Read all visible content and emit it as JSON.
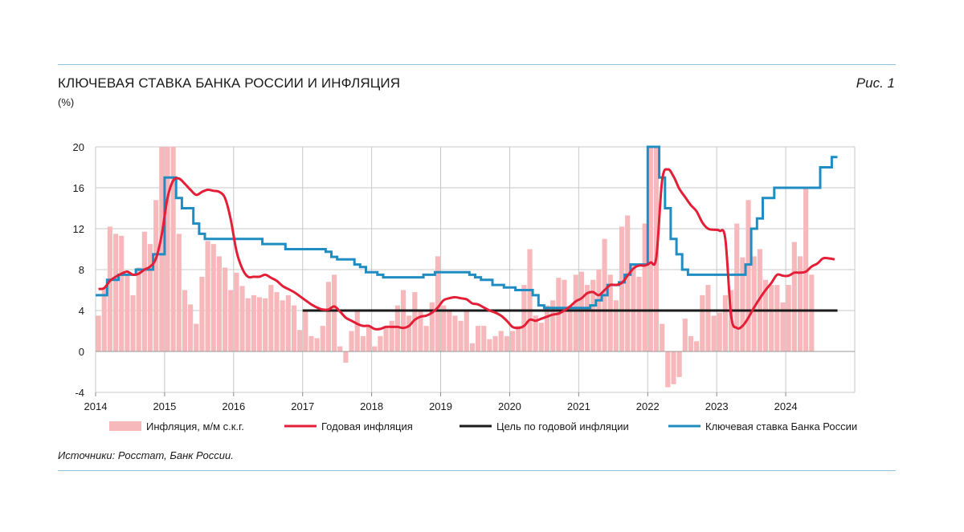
{
  "header": {
    "title": "КЛЮЧЕВАЯ СТАВКА БАНКА РОССИИ И ИНФЛЯЦИЯ",
    "unit": "(%)",
    "figure_label": "Рис. 1"
  },
  "footer": {
    "source": "Источники: Росстат, Банк России."
  },
  "colors": {
    "monthly_bars": "#f7b8bb",
    "annual_line": "#e31e36",
    "target_line": "#1a1a1a",
    "key_rate_line": "#1f8dc1",
    "grid": "#c8c8c8",
    "rule": "#8fc3dd"
  },
  "chart_data": {
    "type": "bar+line",
    "x_ticks": [
      "2014",
      "2015",
      "2016",
      "2017",
      "2018",
      "2019",
      "2020",
      "2021",
      "2022",
      "2023",
      "2024"
    ],
    "ylim": [
      -4,
      20
    ],
    "y_ticks": [
      "20",
      "16",
      "12",
      "8",
      "4",
      "0",
      "-4"
    ],
    "grid": true,
    "legend_position": "bottom",
    "legend": [
      {
        "label": "Инфляция, м/м с.к.г.",
        "kind": "bar"
      },
      {
        "label": "Годовая инфляция",
        "kind": "line",
        "color_key": "annual_line"
      },
      {
        "label": "Цель по годовой инфляции",
        "kind": "line",
        "color_key": "target_line"
      },
      {
        "label": "Ключевая ставка Банка России",
        "kind": "line",
        "color_key": "key_rate_line"
      }
    ],
    "monthly_inflation_saar": [
      3.5,
      6.2,
      12.2,
      11.5,
      11.3,
      7.5,
      5.5,
      8.2,
      11.7,
      10.5,
      14.8,
      20.0,
      20.0,
      20.0,
      11.5,
      6.0,
      4.6,
      2.7,
      7.3,
      10.8,
      10.5,
      9.3,
      8.2,
      6.0,
      7.7,
      6.4,
      5.2,
      5.5,
      5.3,
      5.2,
      6.5,
      5.8,
      5.0,
      5.5,
      4.5,
      2.1,
      4.0,
      1.5,
      1.3,
      2.5,
      6.8,
      7.5,
      0.5,
      -1.1,
      2.0,
      4.0,
      1.5,
      2.5,
      0.5,
      1.5,
      2.5,
      3.0,
      4.5,
      6.0,
      3.5,
      5.8,
      4.0,
      2.5,
      4.8,
      9.3,
      4.5,
      4.0,
      3.5,
      3.0,
      4.0,
      0.8,
      2.5,
      2.5,
      1.2,
      1.5,
      2.0,
      1.5,
      2.0,
      2.5,
      6.5,
      10.0,
      3.5,
      2.8,
      4.5,
      5.0,
      7.2,
      7.0,
      4.5,
      7.5,
      7.8,
      6.5,
      7.0,
      8.0,
      11.0,
      7.5,
      5.0,
      12.2,
      13.3,
      8.5,
      7.3,
      12.5,
      20.0,
      20.0,
      2.7,
      -3.5,
      -3.2,
      -2.5,
      3.2,
      1.5,
      1.0,
      5.5,
      6.5,
      3.5,
      3.8,
      5.5,
      6.0,
      12.5,
      9.2,
      14.8,
      9.3,
      10.0,
      7.0,
      6.5,
      6.5,
      4.8,
      6.5,
      10.7,
      9.3,
      16.0,
      7.5
    ],
    "annual_inflation": [
      6.1,
      6.2,
      6.9,
      7.3,
      7.6,
      7.8,
      7.5,
      7.6,
      8.0,
      8.3,
      9.1,
      11.4,
      15.0,
      16.7,
      16.9,
      16.4,
      15.8,
      15.3,
      15.6,
      15.8,
      15.7,
      15.6,
      15.0,
      12.9,
      9.8,
      8.1,
      7.3,
      7.3,
      7.3,
      7.5,
      7.2,
      6.9,
      6.4,
      6.1,
      5.8,
      5.4,
      5.0,
      4.6,
      4.3,
      4.1,
      4.1,
      4.4,
      3.9,
      3.3,
      3.0,
      2.7,
      2.5,
      2.5,
      2.2,
      2.2,
      2.4,
      2.4,
      2.4,
      2.3,
      2.5,
      3.1,
      3.4,
      3.5,
      3.8,
      4.3,
      5.0,
      5.2,
      5.3,
      5.2,
      5.1,
      4.7,
      4.6,
      4.3,
      4.0,
      3.8,
      3.5,
      3.0,
      2.4,
      2.3,
      2.5,
      3.1,
      3.0,
      3.2,
      3.4,
      3.6,
      3.7,
      4.0,
      4.4,
      4.9,
      5.2,
      5.7,
      5.8,
      5.5,
      6.0,
      6.5,
      6.5,
      6.7,
      7.4,
      8.1,
      8.4,
      8.4,
      8.7,
      9.2,
      16.7,
      17.8,
      17.1,
      15.9,
      15.1,
      14.3,
      13.7,
      12.6,
      12.0,
      11.9,
      11.8,
      11.0,
      3.5,
      2.3,
      2.5,
      3.3,
      4.3,
      5.2,
      6.0,
      6.7,
      7.5,
      7.4,
      7.4,
      7.7,
      7.7,
      7.8,
      8.3,
      8.6,
      9.1,
      9.1,
      9.0
    ],
    "inflation_target": {
      "value": 4,
      "from": "2017"
    },
    "key_rate": [
      5.5,
      5.5,
      7.0,
      7.0,
      7.5,
      7.5,
      7.5,
      8.0,
      8.0,
      8.0,
      9.5,
      9.5,
      17.0,
      17.0,
      15.0,
      14.0,
      14.0,
      12.5,
      11.5,
      11.0,
      11.0,
      11.0,
      11.0,
      11.0,
      11.0,
      11.0,
      11.0,
      11.0,
      11.0,
      10.5,
      10.5,
      10.5,
      10.5,
      10.0,
      10.0,
      10.0,
      10.0,
      10.0,
      10.0,
      10.0,
      9.75,
      9.25,
      9.0,
      9.0,
      9.0,
      8.5,
      8.25,
      7.75,
      7.75,
      7.5,
      7.25,
      7.25,
      7.25,
      7.25,
      7.25,
      7.25,
      7.25,
      7.5,
      7.5,
      7.75,
      7.75,
      7.75,
      7.75,
      7.75,
      7.75,
      7.5,
      7.25,
      7.0,
      7.0,
      6.5,
      6.5,
      6.25,
      6.25,
      6.0,
      6.0,
      6.0,
      5.5,
      4.5,
      4.25,
      4.25,
      4.25,
      4.25,
      4.25,
      4.25,
      4.25,
      4.25,
      4.5,
      5.0,
      5.5,
      6.5,
      6.5,
      6.75,
      7.5,
      8.5,
      8.5,
      8.5,
      20.0,
      20.0,
      17.0,
      14.0,
      11.0,
      9.5,
      8.0,
      7.5,
      7.5,
      7.5,
      7.5,
      7.5,
      7.5,
      7.5,
      7.5,
      7.5,
      7.5,
      8.5,
      12.0,
      13.0,
      15.0,
      15.0,
      16.0,
      16.0,
      16.0,
      16.0,
      16.0,
      16.0,
      16.0,
      16.0,
      18.0,
      18.0,
      19.0
    ]
  }
}
